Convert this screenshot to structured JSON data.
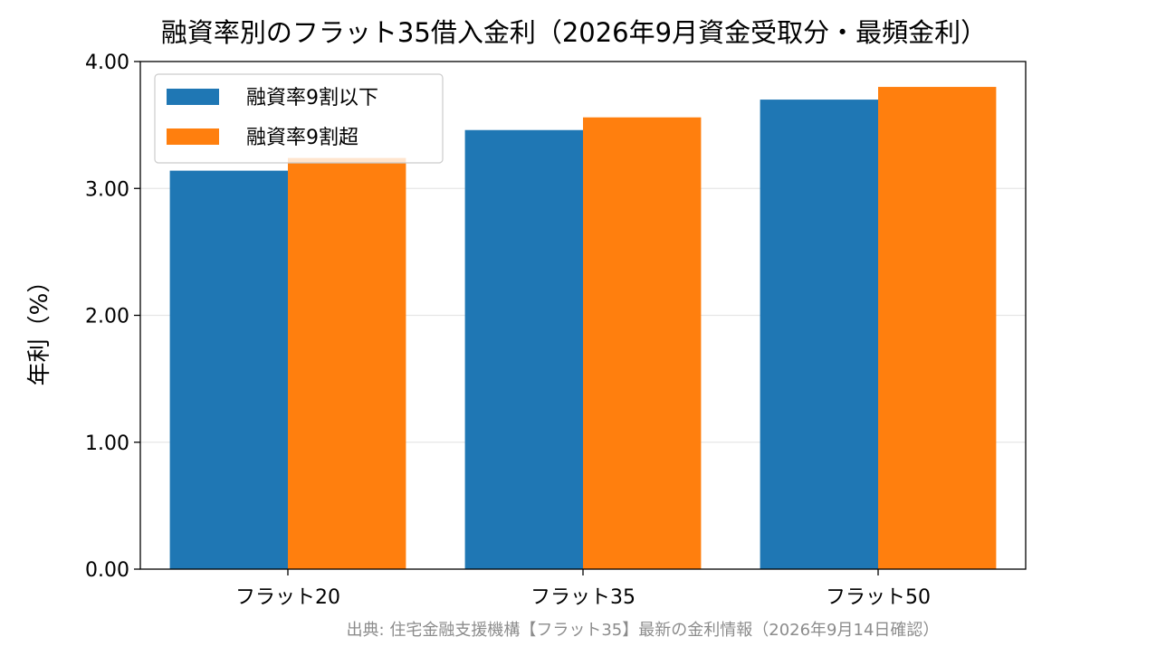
{
  "chart_data": {
    "type": "bar",
    "title": "融資率別のフラット35借入金利（2026年9月資金受取分・最頻金利）",
    "xlabel": "",
    "ylabel": "年利（%）",
    "categories": [
      "フラット20",
      "フラット35",
      "フラット50"
    ],
    "series": [
      {
        "name": "融資率9割以下",
        "values": [
          3.14,
          3.46,
          3.7
        ],
        "color": "#1f77b4"
      },
      {
        "name": "融資率9割超",
        "values": [
          3.24,
          3.56,
          3.8
        ],
        "color": "#ff7f0e"
      }
    ],
    "ylim": [
      0,
      4
    ],
    "yticks": [
      "0.00",
      "1.00",
      "2.00",
      "3.00",
      "4.00"
    ],
    "grid": true,
    "legend_position": "top-left",
    "source": "出典: 住宅金融支援機構【フラット35】最新の金利情報（2026年9月14日確認）"
  }
}
